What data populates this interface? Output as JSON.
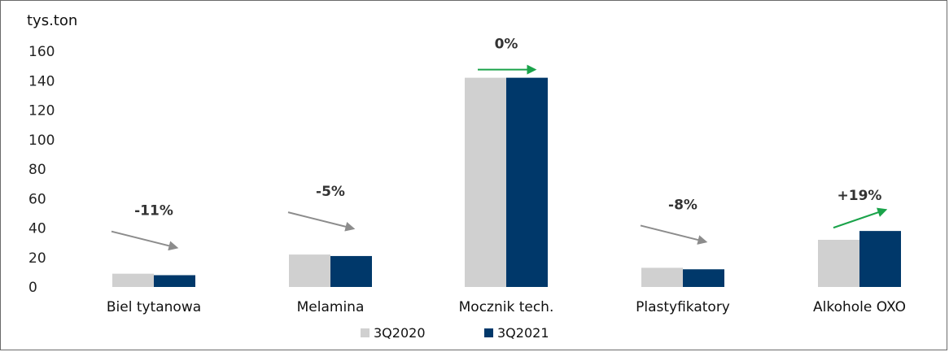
{
  "chart_data": {
    "type": "bar",
    "ylabel": "tys.ton",
    "ylim": [
      0,
      160
    ],
    "yticks": [
      0,
      20,
      40,
      60,
      80,
      100,
      120,
      140,
      160
    ],
    "grid": false,
    "legend_position": "bottom",
    "categories": [
      "Biel tytanowa",
      "Melamina",
      "Mocznik tech.",
      "Plastyfikatory",
      "Alkohole OXO"
    ],
    "series": [
      {
        "name": "3Q2020",
        "color": "#d0d0d0",
        "values": [
          9,
          22,
          142,
          13,
          32
        ]
      },
      {
        "name": "3Q2021",
        "color": "#00386a",
        "values": [
          8,
          21,
          142,
          12,
          38
        ]
      }
    ],
    "annotations": [
      {
        "category": "Biel tytanowa",
        "text": "-11%",
        "trend": "down",
        "arrow_color": "#8c8c8c"
      },
      {
        "category": "Melamina",
        "text": "-5%",
        "trend": "down",
        "arrow_color": "#8c8c8c"
      },
      {
        "category": "Mocznik tech.",
        "text": "0%",
        "trend": "flat",
        "arrow_color": "#1aa34a"
      },
      {
        "category": "Plastyfikatory",
        "text": "-8%",
        "trend": "down",
        "arrow_color": "#8c8c8c"
      },
      {
        "category": "Alkohole OXO",
        "text": "+19%",
        "trend": "up",
        "arrow_color": "#1aa34a"
      }
    ]
  }
}
